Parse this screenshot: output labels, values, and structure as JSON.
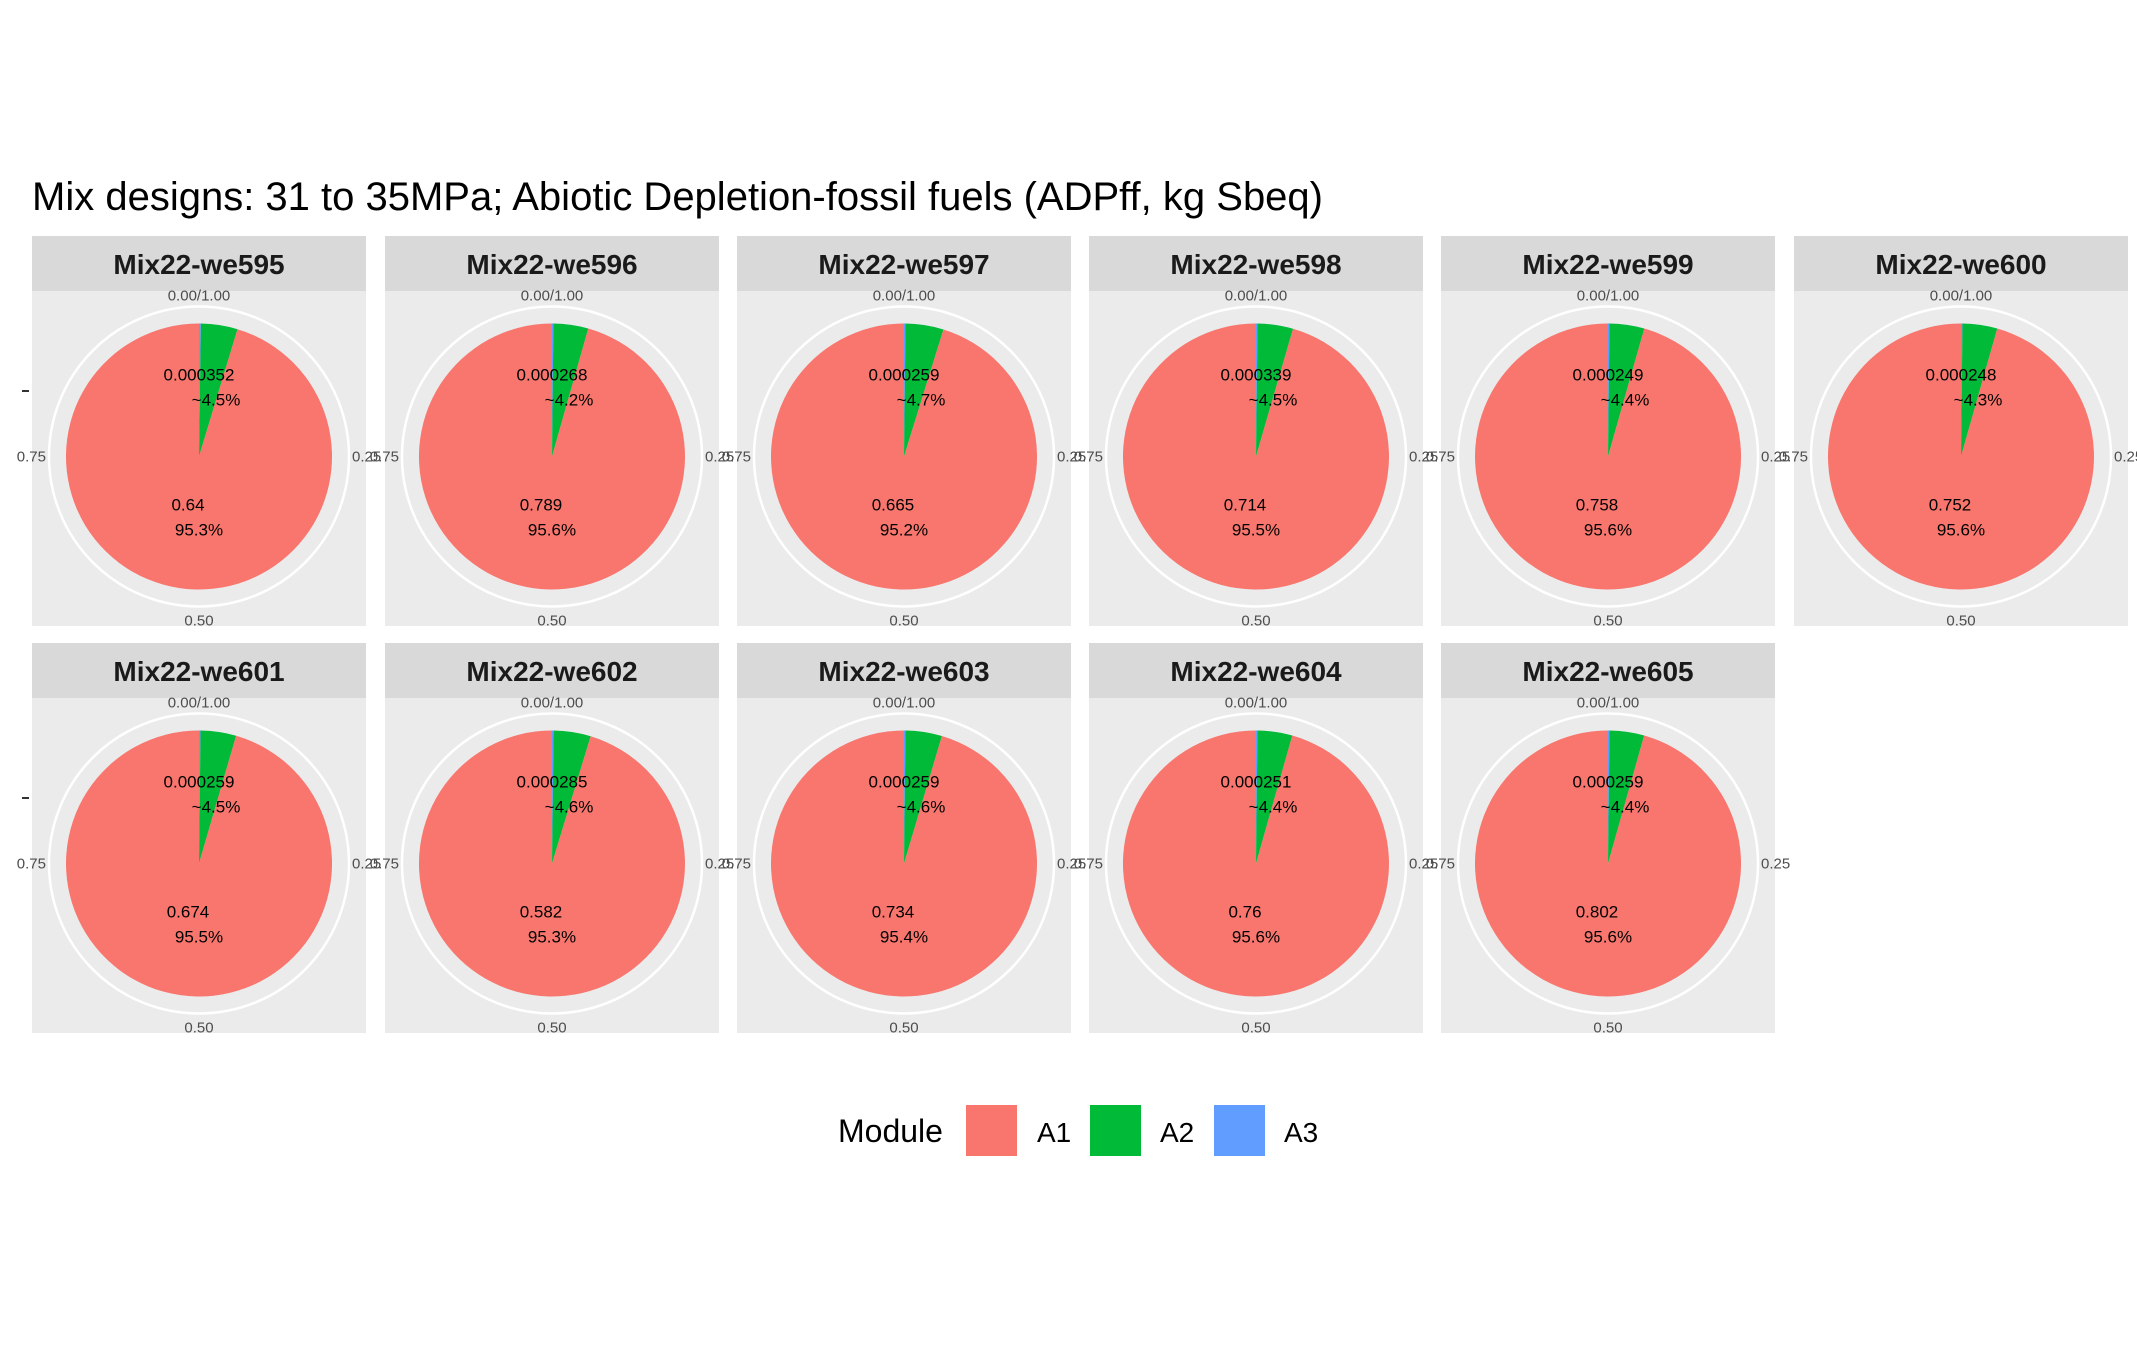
{
  "chart_data": {
    "type": "pie",
    "title": "Mix designs: 31 to 35MPa; Abiotic Depletion-fossil fuels (ADPff, kg Sbeq)",
    "theta_ticks": [
      "0.00/1.00",
      "0.25",
      "0.50",
      "0.75"
    ],
    "legend": {
      "title": "Module",
      "position": "bottom",
      "entries": [
        "A1",
        "A2",
        "A3"
      ]
    },
    "colors": {
      "A1": "#F8766D",
      "A2": "#00BA38",
      "A3": "#619CFF"
    },
    "facets": [
      {
        "name": "Mix22-we595",
        "A1": 0.64,
        "A1_pct": "95.3%",
        "A2": 0.0299,
        "A2_pct": "4.45%",
        "A3": 0.0015,
        "A3_pct": "0.22%",
        "overlap_top": "0.000352",
        "overlap_bottom": "~4.5%"
      },
      {
        "name": "Mix22-we596",
        "A1": 0.789,
        "A1_pct": "95.6%",
        "A2": 0.0349,
        "A2_pct": "4.23%",
        "A3": 0.0014,
        "A3_pct": "0.17%",
        "overlap_top": "0.000268",
        "overlap_bottom": "~4.2%"
      },
      {
        "name": "Mix22-we597",
        "A1": 0.665,
        "A1_pct": "95.2%",
        "A2": 0.0322,
        "A2_pct": "4.61%",
        "A3": 0.0013,
        "A3_pct": "0.19%",
        "overlap_top": "0.000259",
        "overlap_bottom": "~4.7%"
      },
      {
        "name": "Mix22-we598",
        "A1": 0.714,
        "A1_pct": "95.5%",
        "A2": 0.0322,
        "A2_pct": "4.31%",
        "A3": 0.0014,
        "A3_pct": "0.19%",
        "overlap_top": "0.000339",
        "overlap_bottom": "~4.5%"
      },
      {
        "name": "Mix22-we599",
        "A1": 0.758,
        "A1_pct": "95.6%",
        "A2": 0.0335,
        "A2_pct": "4.22%",
        "A3": 0.0014,
        "A3_pct": "0.18%",
        "overlap_top": "0.000249",
        "overlap_bottom": "~4.4%"
      },
      {
        "name": "Mix22-we600",
        "A1": 0.752,
        "A1_pct": "95.6%",
        "A2": 0.0332,
        "A2_pct": "4.22%",
        "A3": 0.0014,
        "A3_pct": "0.18%",
        "overlap_top": "0.000248",
        "overlap_bottom": "~4.3%"
      },
      {
        "name": "Mix22-we601",
        "A1": 0.674,
        "A1_pct": "95.5%",
        "A2": 0.0305,
        "A2_pct": "4.32%",
        "A3": 0.0013,
        "A3_pct": "0.18%",
        "overlap_top": "0.000259",
        "overlap_bottom": "~4.5%"
      },
      {
        "name": "Mix22-we602",
        "A1": 0.582,
        "A1_pct": "95.3%",
        "A2": 0.0275,
        "A2_pct": "4.50%",
        "A3": 0.0012,
        "A3_pct": "0.20%",
        "overlap_top": "0.000285",
        "overlap_bottom": "~4.6%"
      },
      {
        "name": "Mix22-we603",
        "A1": 0.734,
        "A1_pct": "95.4%",
        "A2": 0.034,
        "A2_pct": "4.42%",
        "A3": 0.0014,
        "A3_pct": "0.18%",
        "overlap_top": "0.000259",
        "overlap_bottom": "~4.6%"
      },
      {
        "name": "Mix22-we604",
        "A1": 0.76,
        "A1_pct": "95.6%",
        "A2": 0.0336,
        "A2_pct": "4.23%",
        "A3": 0.0014,
        "A3_pct": "0.17%",
        "overlap_top": "0.000251",
        "overlap_bottom": "~4.4%"
      },
      {
        "name": "Mix22-we605",
        "A1": 0.802,
        "A1_pct": "95.6%",
        "A2": 0.0353,
        "A2_pct": "4.21%",
        "A3": 0.0015,
        "A3_pct": "0.18%",
        "overlap_top": "0.000259",
        "overlap_bottom": "~4.4%"
      }
    ]
  }
}
